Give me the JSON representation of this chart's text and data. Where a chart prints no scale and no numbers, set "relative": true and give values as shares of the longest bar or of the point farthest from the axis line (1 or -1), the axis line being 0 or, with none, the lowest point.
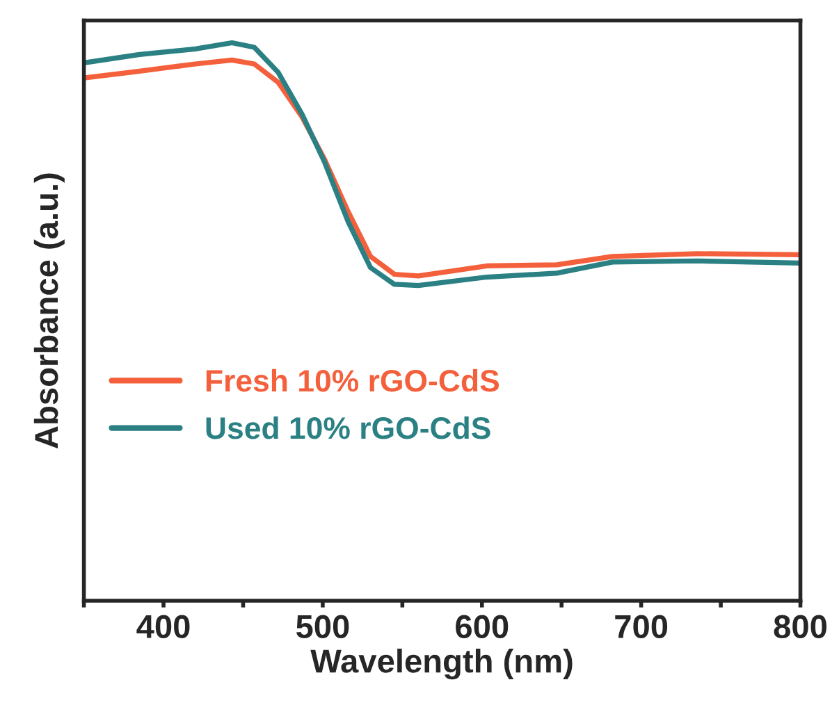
{
  "chart_data": {
    "type": "line",
    "relative": true,
    "xlabel": "Wavelength (nm)",
    "ylabel": "Absorbance (a.u.)",
    "xlim": [
      350,
      800
    ],
    "xticks": [
      {
        "value": 350,
        "label": null
      },
      400,
      {
        "value": 450,
        "label": null
      },
      500,
      {
        "value": 550,
        "label": null
      },
      600,
      {
        "value": 650,
        "label": null
      },
      700,
      {
        "value": 750,
        "label": null
      },
      800
    ],
    "legend": "bottom left",
    "grid": false,
    "marker": "none",
    "line_style": "solid",
    "series": [
      {
        "name": "Fresh 10% rGO-CdS",
        "color": "#f4603c",
        "x": [
          350,
          385,
          420,
          443,
          457,
          472,
          487,
          501,
          516,
          530,
          545,
          560,
          603,
          647,
          682,
          735,
          800
        ],
        "values": [
          0.937,
          0.949,
          0.962,
          0.969,
          0.962,
          0.929,
          0.867,
          0.792,
          0.697,
          0.617,
          0.585,
          0.582,
          0.6,
          0.602,
          0.617,
          0.622,
          0.62
        ]
      },
      {
        "name": "Used 10% rGO-CdS",
        "color": "#2a8083",
        "x": [
          350,
          385,
          420,
          443,
          457,
          472,
          487,
          501,
          516,
          530,
          545,
          560,
          603,
          647,
          682,
          735,
          800
        ],
        "values": [
          0.964,
          0.979,
          0.989,
          1.0,
          0.992,
          0.947,
          0.872,
          0.787,
          0.679,
          0.597,
          0.567,
          0.565,
          0.58,
          0.587,
          0.607,
          0.609,
          0.605
        ]
      }
    ]
  }
}
